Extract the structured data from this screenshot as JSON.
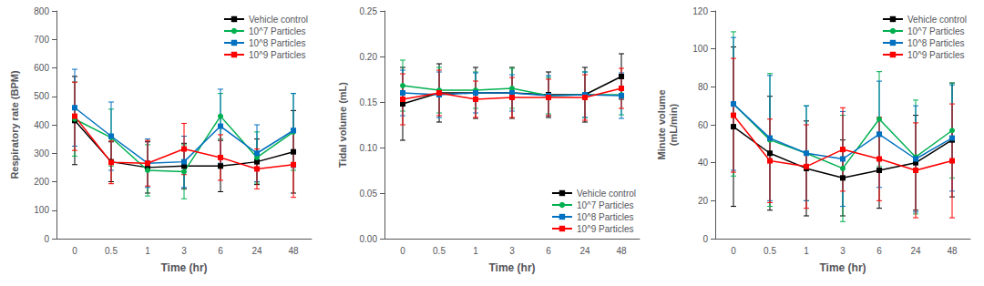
{
  "chart_data": [
    {
      "type": "line",
      "categories": [
        "0",
        "0.5",
        "1",
        "3",
        "6",
        "24",
        "48"
      ],
      "xlabel": "Time (hr)",
      "ylabel": "Respiratory rate (BPM)",
      "ylim": [
        0,
        800
      ],
      "yticks": [
        0,
        100,
        200,
        300,
        400,
        500,
        600,
        700,
        800
      ],
      "grid": false,
      "legend": "upper right",
      "series": [
        {
          "name": "Vehicle control",
          "color": "#000000",
          "marker": "square",
          "values": [
            415,
            270,
            250,
            255,
            255,
            270,
            305
          ],
          "yerr": [
            155,
            70,
            90,
            80,
            90,
            80,
            145
          ]
        },
        {
          "name": "10^7 Particles",
          "color": "#00b050",
          "marker": "circle",
          "values": [
            420,
            355,
            240,
            235,
            430,
            285,
            375
          ],
          "yerr": [
            130,
            100,
            90,
            95,
            80,
            90,
            135
          ]
        },
        {
          "name": "10^8 Particles",
          "color": "#0070c0",
          "marker": "square",
          "values": [
            460,
            360,
            265,
            270,
            395,
            300,
            380
          ],
          "yerr": [
            135,
            120,
            85,
            90,
            130,
            100,
            130
          ]
        },
        {
          "name": "10^9 Particles",
          "color": "#ff0000",
          "marker": "square",
          "values": [
            430,
            268,
            265,
            315,
            285,
            245,
            260
          ],
          "yerr": [
            120,
            75,
            80,
            90,
            80,
            70,
            115
          ]
        }
      ]
    },
    {
      "type": "line",
      "categories": [
        "0",
        "0.5",
        "1",
        "3",
        "6",
        "24",
        "48"
      ],
      "xlabel": "Time (hr)",
      "ylabel": "Tidal volume (mL)",
      "ylim": [
        0,
        0.25
      ],
      "yticks": [
        {
          "value": 0,
          "label": "0.00"
        },
        0.05,
        {
          "value": 0.1,
          "label": "0.10"
        },
        0.15,
        {
          "value": 0.2,
          "label": "0.20"
        },
        0.25
      ],
      "grid": false,
      "legend": "lower right",
      "series": [
        {
          "name": "Vehicle control",
          "color": "#000000",
          "marker": "square",
          "values": [
            0.148,
            0.16,
            0.16,
            0.16,
            0.158,
            0.158,
            0.178
          ],
          "yerr": [
            0.04,
            0.032,
            0.028,
            0.028,
            0.025,
            0.03,
            0.025
          ]
        },
        {
          "name": "10^7 Particles",
          "color": "#00b050",
          "marker": "circle",
          "values": [
            0.168,
            0.163,
            0.163,
            0.165,
            0.157,
            0.158,
            0.158
          ],
          "yerr": [
            0.028,
            0.025,
            0.02,
            0.022,
            0.02,
            0.025,
            0.022
          ]
        },
        {
          "name": "10^8 Particles",
          "color": "#0070c0",
          "marker": "square",
          "values": [
            0.16,
            0.158,
            0.16,
            0.16,
            0.157,
            0.158,
            0.157
          ],
          "yerr": [
            0.025,
            0.025,
            0.022,
            0.02,
            0.022,
            0.025,
            0.025
          ]
        },
        {
          "name": "10^9 Particles",
          "color": "#ff0000",
          "marker": "square",
          "values": [
            0.153,
            0.16,
            0.153,
            0.155,
            0.155,
            0.155,
            0.165
          ],
          "yerr": [
            0.028,
            0.025,
            0.02,
            0.022,
            0.02,
            0.025,
            0.022
          ]
        }
      ]
    },
    {
      "type": "line",
      "categories": [
        "0",
        "0.5",
        "1",
        "3",
        "6",
        "24",
        "48"
      ],
      "xlabel": "Time (hr)",
      "ylabel": "Minute volume\n(mL/min)",
      "ylim": [
        0,
        120
      ],
      "yticks": [
        0,
        20,
        40,
        60,
        80,
        100,
        120
      ],
      "grid": false,
      "legend": "upper right",
      "series": [
        {
          "name": "Vehicle control",
          "color": "#000000",
          "marker": "square",
          "values": [
            59,
            45,
            37,
            32,
            36,
            40,
            52
          ],
          "yerr": [
            42,
            30,
            25,
            20,
            20,
            25,
            30
          ]
        },
        {
          "name": "10^7 Particles",
          "color": "#00b050",
          "marker": "circle",
          "values": [
            71,
            52,
            45,
            37,
            63,
            43,
            57
          ],
          "yerr": [
            38,
            35,
            25,
            28,
            25,
            30,
            25
          ]
        },
        {
          "name": "10^8 Particles",
          "color": "#0070c0",
          "marker": "square",
          "values": [
            71,
            53,
            45,
            42,
            55,
            42,
            53
          ],
          "yerr": [
            35,
            33,
            25,
            25,
            28,
            28,
            28
          ]
        },
        {
          "name": "10^9 Particles",
          "color": "#ff0000",
          "marker": "square",
          "values": [
            65,
            41,
            38,
            47,
            42,
            36,
            41
          ],
          "yerr": [
            30,
            22,
            22,
            22,
            22,
            25,
            30
          ]
        }
      ]
    }
  ]
}
